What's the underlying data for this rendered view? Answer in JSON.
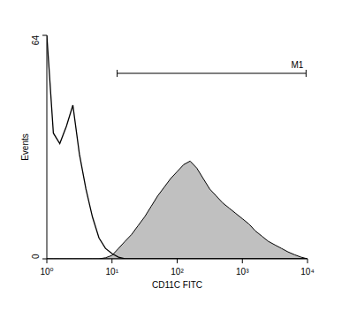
{
  "chart_data": {
    "type": "line",
    "x_label": "CD11C FITC",
    "y_label": "Events",
    "log": "x",
    "xlim": [
      1,
      10000
    ],
    "ylim": [
      0,
      64
    ],
    "xticks": [
      {
        "value": 1,
        "label": "10⁰"
      },
      {
        "value": 10,
        "label": "10¹"
      },
      {
        "value": 100,
        "label": "10²"
      },
      {
        "value": 1000,
        "label": "10³"
      },
      {
        "value": 10000,
        "label": "10⁴"
      }
    ],
    "yticks": [
      0,
      64
    ],
    "x": [
      1,
      1.26,
      1.58,
      2,
      2.51,
      3.16,
      3.98,
      5.01,
      6.31,
      7.94,
      10,
      12.6,
      15.8,
      20,
      25.1,
      31.6,
      39.8,
      50.1,
      63.1,
      79.4,
      100,
      126,
      158,
      200,
      251,
      316,
      398,
      501,
      631,
      794,
      1000,
      1259,
      1585,
      1995,
      2512,
      3162,
      3981,
      5012,
      6310,
      7943,
      10000
    ],
    "series": [
      {
        "color": "#000000",
        "type": "line",
        "values": [
          64,
          36,
          33,
          38,
          44,
          30,
          20,
          12,
          6,
          3,
          1.5,
          0.5,
          0,
          0,
          0,
          0,
          0,
          0,
          0,
          0,
          0,
          0,
          0,
          0,
          0,
          0,
          0,
          0,
          0,
          0,
          0,
          0,
          0,
          0,
          0,
          0,
          0,
          0,
          0,
          0,
          0
        ]
      },
      {
        "color": "#c0c0c0",
        "type": "area",
        "values": [
          0,
          0,
          0,
          0,
          0,
          0,
          0,
          0,
          0,
          0.3,
          1,
          3,
          5,
          7,
          9.5,
          12,
          15,
          18,
          20.5,
          23,
          25,
          27,
          28,
          26,
          23,
          20,
          18,
          16,
          14.5,
          13,
          11.5,
          10,
          8,
          6.5,
          5,
          4,
          3,
          2,
          1.2,
          0.5,
          0
        ]
      }
    ],
    "annotations": [
      {
        "text": "M1",
        "x_range": [
          12,
          9500
        ]
      }
    ]
  }
}
